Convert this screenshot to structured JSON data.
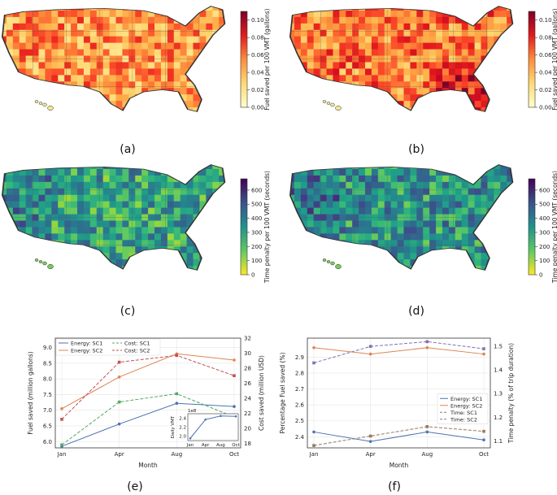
{
  "panels": {
    "a": {
      "label": "(a)",
      "colorbar": {
        "label": "Fuel saved per 100 VMT (gallons)",
        "ticks": [
          "0.00",
          "0.02",
          "0.04",
          "0.06",
          "0.08",
          "0.10"
        ],
        "min": 0,
        "max": 0.11,
        "colormap": "YlOrRd"
      },
      "intensity_bias": 0.35
    },
    "b": {
      "label": "(b)",
      "colorbar": {
        "label": "Fuel saved per 100 VMT (gallons)",
        "ticks": [
          "0.00",
          "0.02",
          "0.04",
          "0.06",
          "0.08",
          "0.10"
        ],
        "min": 0,
        "max": 0.11,
        "colormap": "YlOrRd"
      },
      "intensity_bias": 0.5
    },
    "c": {
      "label": "(c)",
      "colorbar": {
        "label": "Time penalty per 100 VMT (seconds)",
        "ticks": [
          "0",
          "100",
          "200",
          "300",
          "400",
          "500",
          "600"
        ],
        "min": 0,
        "max": 680,
        "colormap": "viridis_r"
      },
      "intensity_bias": 0.3
    },
    "d": {
      "label": "(d)",
      "colorbar": {
        "label": "Time penalty per 100 VMT (seconds)",
        "ticks": [
          "0",
          "100",
          "200",
          "300",
          "400",
          "500",
          "600"
        ],
        "min": 0,
        "max": 680,
        "colormap": "viridis_r"
      },
      "intensity_bias": 0.42
    },
    "e": {
      "label": "(e)"
    },
    "f": {
      "label": "(f)"
    }
  },
  "colors": {
    "sc1": "#4c72b0",
    "sc2": "#dd8452",
    "sc1_cost": "#55a868",
    "sc2_cost": "#c44e52",
    "sc1_time": "#937860",
    "sc2_time": "#8172b3"
  },
  "chart_data": [
    {
      "panel": "e",
      "type": "line",
      "xlabel": "Month",
      "ylabel": "Fuel saved (million gallons)",
      "y2label": "Cost saved (million USD)",
      "categories": [
        "Jan",
        "Apr",
        "Aug",
        "Oct"
      ],
      "ylim": [
        5.8,
        9.3
      ],
      "yticks": [
        "6.0",
        "6.5",
        "7.0",
        "7.5",
        "8.0",
        "8.5",
        "9.0"
      ],
      "y2lim": [
        17.4,
        32
      ],
      "y2ticks": [
        "18",
        "20",
        "22",
        "24",
        "26",
        "28",
        "30",
        "32"
      ],
      "grid": true,
      "legend": "top-left",
      "series": [
        {
          "name": "Energy: SC1",
          "axis": "left",
          "style": "solid",
          "marker": "circle",
          "values": [
            5.85,
            6.56,
            7.22,
            7.12
          ]
        },
        {
          "name": "Energy: SC2",
          "axis": "left",
          "style": "solid",
          "marker": "circle",
          "values": [
            7.05,
            8.06,
            8.8,
            8.6
          ]
        },
        {
          "name": "Cost: SC1",
          "axis": "right",
          "style": "dashed",
          "marker": "square",
          "values": [
            17.8,
            23.5,
            24.6,
            21.5
          ]
        },
        {
          "name": "Cost: SC2",
          "axis": "right",
          "style": "dashed",
          "marker": "square",
          "values": [
            21.2,
            28.8,
            29.7,
            27.0
          ]
        }
      ],
      "inset": {
        "ylabel": "Daily VMT",
        "exponent": "1e8",
        "categories": [
          "Jan",
          "Apr",
          "Aug",
          "Oct"
        ],
        "ylim": [
          1.9,
          2.5
        ],
        "yticks": [
          "2.0",
          "2.2",
          "2.4"
        ],
        "values": [
          1.95,
          2.37,
          2.45,
          2.44
        ]
      }
    },
    {
      "panel": "f",
      "type": "line",
      "xlabel": "Month",
      "ylabel": "Percentage Fuel saved (%)",
      "y2label": "Time penalty (% of trip duration)",
      "categories": [
        "Jan",
        "Apr",
        "Aug",
        "Oct"
      ],
      "ylim": [
        2.33,
        3.02
      ],
      "yticks": [
        "2.4",
        "2.5",
        "2.6",
        "2.7",
        "2.8",
        "2.9"
      ],
      "y2lim": [
        1.07,
        1.535
      ],
      "y2ticks": [
        "1.1",
        "1.2",
        "1.3",
        "1.4",
        "1.5"
      ],
      "grid": true,
      "legend": "center-right",
      "series": [
        {
          "name": "Energy: SC1",
          "axis": "left",
          "style": "solid",
          "marker": "circle",
          "values": [
            2.43,
            2.37,
            2.43,
            2.38
          ]
        },
        {
          "name": "Energy: SC2",
          "axis": "left",
          "style": "solid",
          "marker": "circle",
          "values": [
            2.96,
            2.92,
            2.96,
            2.92
          ]
        },
        {
          "name": "Time: SC1",
          "axis": "right",
          "style": "dashed",
          "marker": "square",
          "values": [
            1.08,
            1.12,
            1.16,
            1.14
          ]
        },
        {
          "name": "Time: SC2",
          "axis": "right",
          "style": "dashed",
          "marker": "square",
          "values": [
            1.43,
            1.5,
            1.52,
            1.49
          ]
        }
      ]
    }
  ]
}
